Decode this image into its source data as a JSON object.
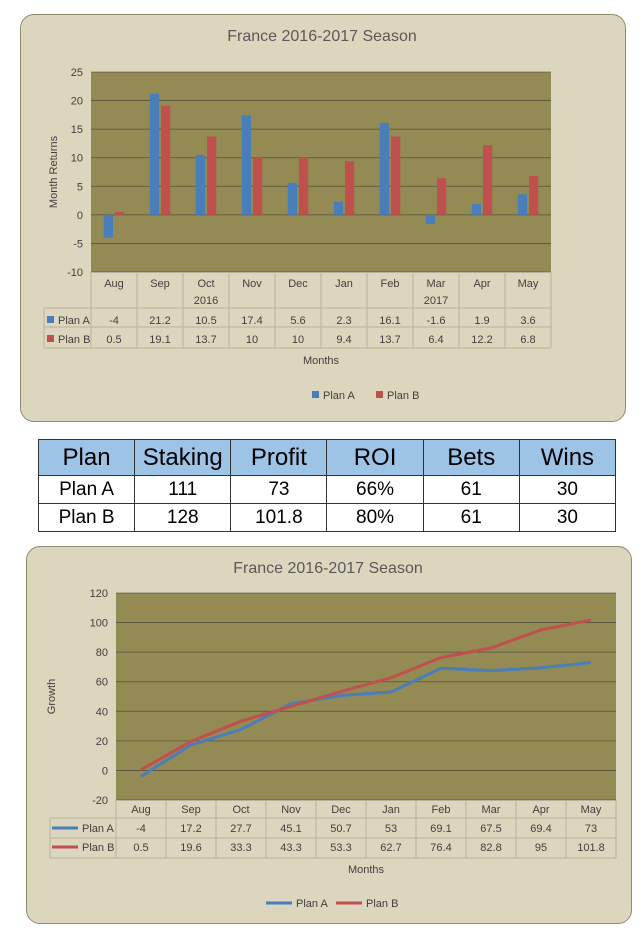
{
  "chart_data": [
    {
      "type": "bar",
      "title": "France 2016-2017 Season",
      "ylabel": "Month Returns",
      "xlabel": "Months",
      "ylim": [
        -10,
        25
      ],
      "yticks": [
        -10,
        -5,
        0,
        5,
        10,
        15,
        20,
        25
      ],
      "grid": true,
      "categories": [
        "Aug",
        "Sep",
        "Oct",
        "Nov",
        "Dec",
        "Jan",
        "Feb",
        "Mar",
        "Apr",
        "May"
      ],
      "category_groups": [
        {
          "label": "2016",
          "after_index": 2
        },
        {
          "label": "2017",
          "after_index": 7
        }
      ],
      "series": [
        {
          "name": "Plan A",
          "color": "#4a7ebb",
          "values": [
            -4,
            21.2,
            10.5,
            17.4,
            5.6,
            2.3,
            16.1,
            -1.6,
            1.9,
            3.6
          ]
        },
        {
          "name": "Plan B",
          "color": "#c0504d",
          "values": [
            0.5,
            19.1,
            13.7,
            10,
            10,
            9.4,
            13.7,
            6.4,
            12.2,
            6.8
          ]
        }
      ],
      "legend": "bottom",
      "data_table": true
    },
    {
      "type": "line",
      "title": "France 2016-2017 Season",
      "ylabel": "Growth",
      "xlabel": "Months",
      "ylim": [
        -20,
        120
      ],
      "yticks": [
        -20,
        0,
        20,
        40,
        60,
        80,
        100,
        120
      ],
      "grid": true,
      "categories": [
        "Aug",
        "Sep",
        "Oct",
        "Nov",
        "Dec",
        "Jan",
        "Feb",
        "Mar",
        "Apr",
        "May"
      ],
      "series": [
        {
          "name": "Plan A",
          "color": "#4a7ebb",
          "values": [
            -4,
            17.2,
            27.7,
            45.1,
            50.7,
            53,
            69.1,
            67.5,
            69.4,
            73
          ]
        },
        {
          "name": "Plan B",
          "color": "#c0504d",
          "values": [
            0.5,
            19.6,
            33.3,
            43.3,
            53.3,
            62.7,
            76.4,
            82.8,
            95,
            101.8
          ]
        }
      ],
      "legend": "bottom",
      "data_table": true
    }
  ],
  "summary_table": {
    "headers": [
      "Plan",
      "Staking",
      "Profit",
      "ROI",
      "Bets",
      "Wins"
    ],
    "rows": [
      [
        "Plan A",
        "111",
        "73",
        "66%",
        "61",
        "30"
      ],
      [
        "Plan B",
        "128",
        "101.8",
        "80%",
        "61",
        "30"
      ]
    ]
  },
  "colors": {
    "panel_bg": "#dcd6be",
    "plot_bg": "#948a54",
    "header_bg": "#9dc3e6"
  }
}
